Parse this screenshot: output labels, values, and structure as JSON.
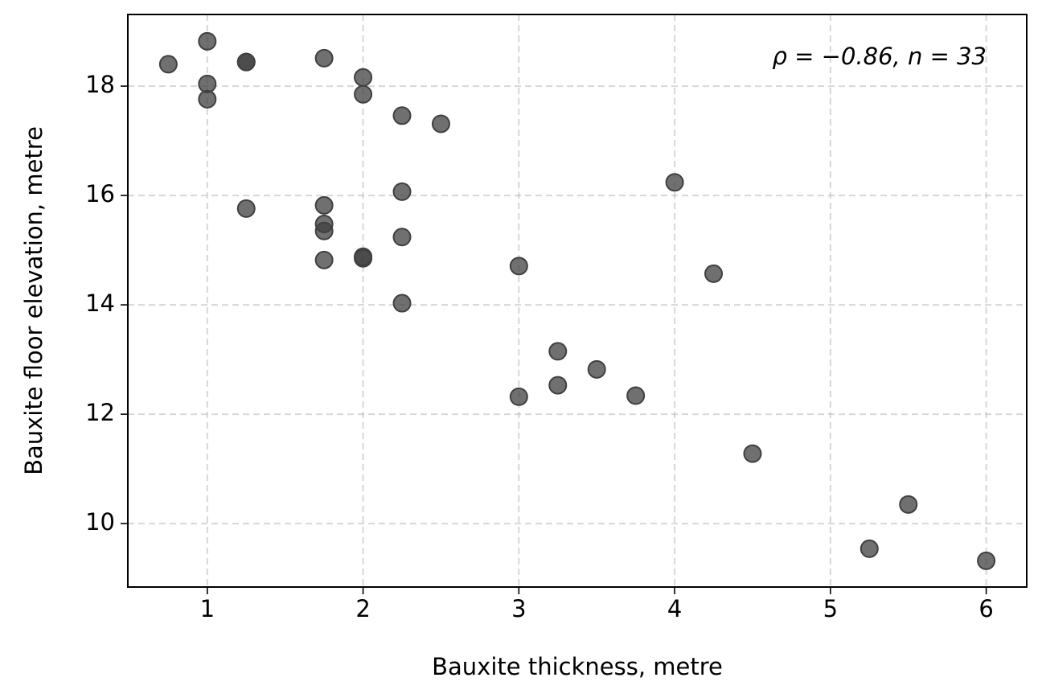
{
  "chart_data": {
    "type": "scatter",
    "x_label": "Bauxite thickness, metre",
    "y_label": "Bauxite floor elevation, metre",
    "annotation": "ρ = −0.86, n = 33",
    "color": "#404040",
    "grid": true,
    "xlim": [
      0.49,
      6.26
    ],
    "ylim": [
      8.84,
      19.31
    ],
    "xticks": [
      1,
      2,
      3,
      4,
      5,
      6
    ],
    "yticks": [
      10,
      12,
      14,
      16,
      18
    ],
    "x": [
      0.75,
      1,
      1,
      1,
      1.25,
      1.25,
      1.25,
      1.75,
      1.75,
      1.75,
      1.75,
      1.75,
      2,
      2,
      2,
      2,
      2.25,
      2.25,
      2.25,
      2.25,
      2.5,
      3,
      3,
      3.25,
      3.25,
      3.5,
      3.75,
      4,
      4.25,
      4.5,
      5.25,
      5.5,
      6
    ],
    "y": [
      18.4,
      18.82,
      18.04,
      17.76,
      18.44,
      18.44,
      15.76,
      18.51,
      15.82,
      15.48,
      15.35,
      14.82,
      18.16,
      17.85,
      14.88,
      14.85,
      17.46,
      16.07,
      15.24,
      14.03,
      17.31,
      14.71,
      12.32,
      13.15,
      12.53,
      12.82,
      12.34,
      16.24,
      14.57,
      11.28,
      9.54,
      10.35,
      9.32
    ]
  }
}
